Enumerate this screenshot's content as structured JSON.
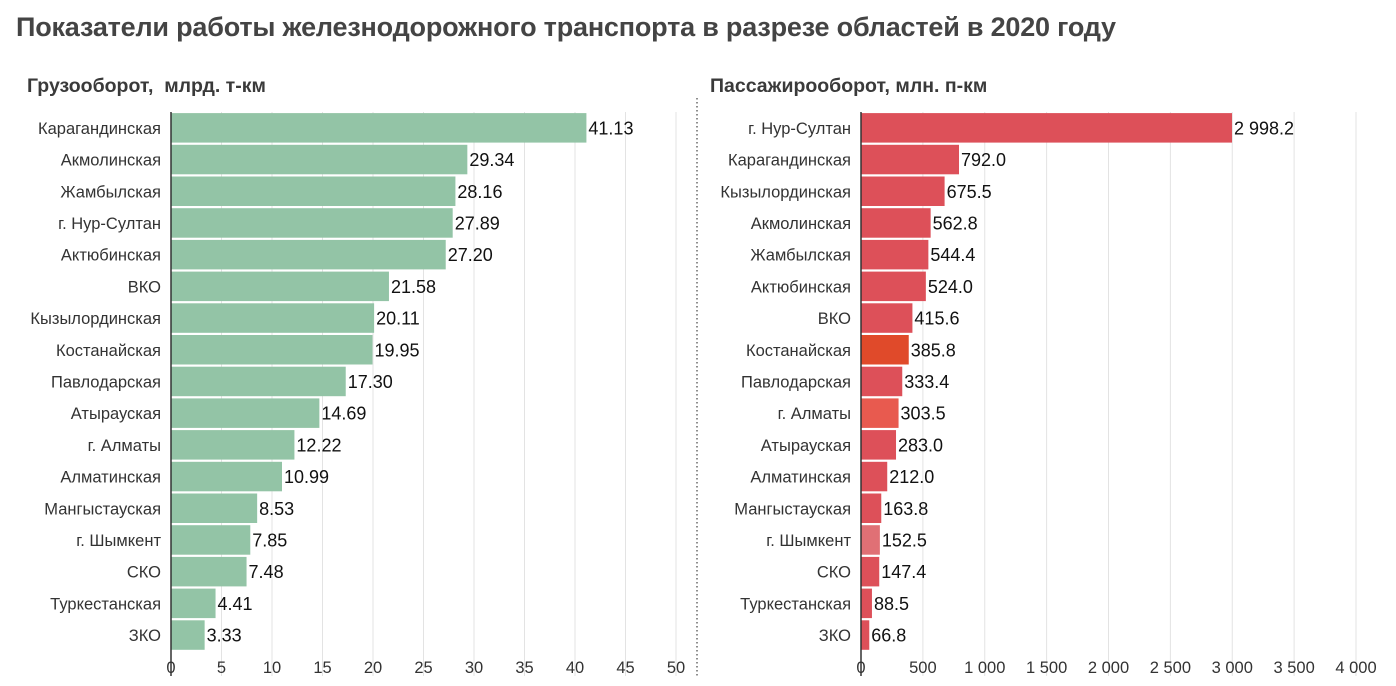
{
  "title": "Показатели работы железнодорожного транспорта в разрезе областей в 2020 году",
  "chart_data": [
    {
      "type": "bar",
      "orientation": "horizontal",
      "title": "Грузооборот,  млрд. т-км",
      "categories": [
        "Карагандинская",
        "Акмолинская",
        "Жамбылская",
        "г. Нур-Султан",
        "Актюбинская",
        "ВКО",
        "Кызылординская",
        "Костанайская",
        "Павлодарская",
        "Атырауская",
        "г. Алматы",
        "Алматинская",
        "Мангыстауская",
        "г. Шымкент",
        "СКО",
        "Туркестанская",
        "ЗКО"
      ],
      "values": [
        41.13,
        29.34,
        28.16,
        27.89,
        27.2,
        21.58,
        20.11,
        19.95,
        17.3,
        14.69,
        12.22,
        10.99,
        8.53,
        7.85,
        7.48,
        4.41,
        3.33
      ],
      "labels": [
        "41.13",
        "29.34",
        "28.16",
        "27.89",
        "27.20",
        "21.58",
        "20.11",
        "19.95",
        "17.30",
        "14.69",
        "12.22",
        "10.99",
        "8.53",
        "7.85",
        "7.48",
        "4.41",
        "3.33"
      ],
      "xlim": [
        0,
        50
      ],
      "ticks": [
        0,
        5,
        10,
        15,
        20,
        25,
        30,
        35,
        40,
        45,
        50
      ],
      "tick_labels": [
        "0",
        "5",
        "10",
        "15",
        "20",
        "25",
        "30",
        "35",
        "40",
        "45",
        "50"
      ],
      "colors": [
        "#93c4a6",
        "#93c4a6",
        "#93c4a6",
        "#93c4a6",
        "#93c4a6",
        "#93c4a6",
        "#93c4a6",
        "#93c4a6",
        "#93c4a6",
        "#93c4a6",
        "#93c4a6",
        "#93c4a6",
        "#93c4a6",
        "#93c4a6",
        "#93c4a6",
        "#93c4a6",
        "#93c4a6"
      ]
    },
    {
      "type": "bar",
      "orientation": "horizontal",
      "title": "Пассажирооборот, млн. п-км",
      "categories": [
        "г. Нур-Султан",
        "Карагандинская",
        "Кызылординская",
        "Акмолинская",
        "Жамбылская",
        "Актюбинская",
        "ВКО",
        "Костанайская",
        "Павлодарская",
        "г. Алматы",
        "Атырауская",
        "Алматинская",
        "Мангыстауская",
        "г. Шымкент",
        "СКО",
        "Туркестанская",
        "ЗКО"
      ],
      "values": [
        2998.2,
        792.0,
        675.5,
        562.8,
        544.4,
        524.0,
        415.6,
        385.8,
        333.4,
        303.5,
        283.0,
        212.0,
        163.8,
        152.5,
        147.4,
        88.5,
        66.8
      ],
      "labels": [
        "2 998.2",
        "792.0",
        "675.5",
        "562.8",
        "544.4",
        "524.0",
        "415.6",
        "385.8",
        "333.4",
        "303.5",
        "283.0",
        "212.0",
        "163.8",
        "152.5",
        "147.4",
        "88.5",
        "66.8"
      ],
      "xlim": [
        0,
        4000
      ],
      "ticks": [
        0,
        500,
        1000,
        1500,
        2000,
        2500,
        3000,
        3500,
        4000
      ],
      "tick_labels": [
        "0",
        "500",
        "1 000",
        "1 500",
        "2 000",
        "2 500",
        "3 000",
        "3 500",
        "4 000"
      ],
      "colors": [
        "#dd5059",
        "#dd5059",
        "#dd5059",
        "#dd5059",
        "#dd5059",
        "#dd5059",
        "#dd5059",
        "#e04a2a",
        "#dd5059",
        "#e85a4f",
        "#dd5059",
        "#dd5059",
        "#dd5059",
        "#e07075",
        "#dd5059",
        "#dd5059",
        "#dd5059"
      ]
    }
  ]
}
